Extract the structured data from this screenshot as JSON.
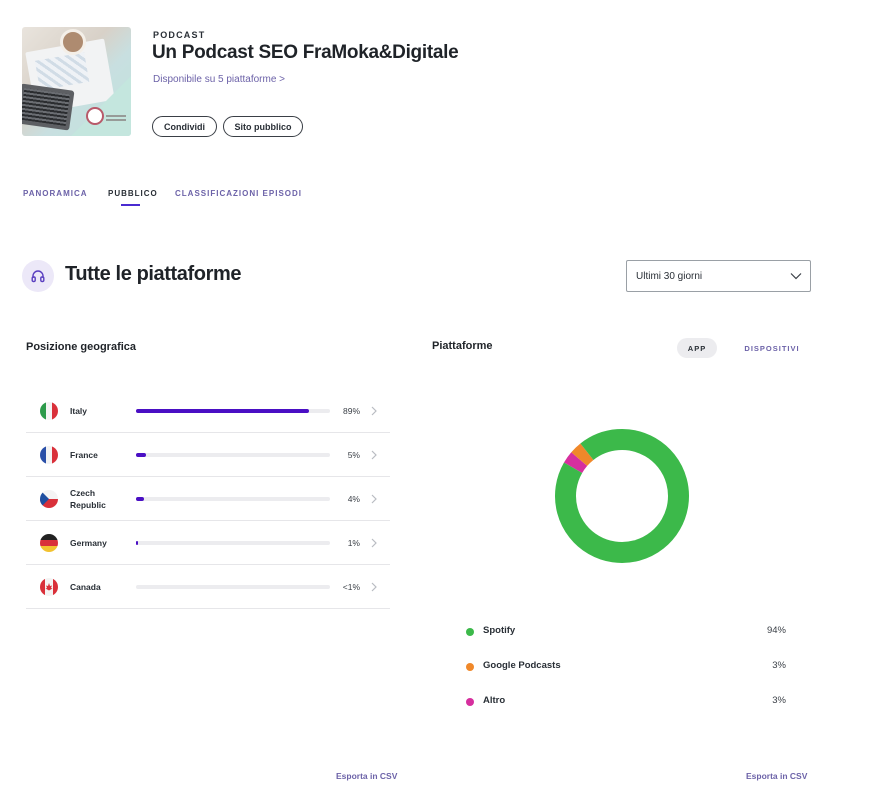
{
  "podcast": {
    "kicker": "PODCAST",
    "title": "Un Podcast SEO FraMoka&Digitale",
    "availability": "Disponibile su 5 piattaforme >",
    "share_label": "Condividi",
    "public_site_label": "Sito pubblico"
  },
  "tabs": [
    {
      "label": "PANORAMICA",
      "active": false
    },
    {
      "label": "PUBBLICO",
      "active": true
    },
    {
      "label": "CLASSIFICAZIONI EPISODI",
      "active": false
    }
  ],
  "section": {
    "title": "Tutte le piattaforme",
    "icon": "headphones-icon",
    "period": "Ultimi 30 giorni"
  },
  "geo": {
    "title": "Posizione geografica",
    "rows": [
      {
        "country": "Italy",
        "pct_label": "89%",
        "fraction": 0.89,
        "flag": "italy"
      },
      {
        "country": "France",
        "pct_label": "5%",
        "fraction": 0.05,
        "flag": "france"
      },
      {
        "country": "Czech Republic",
        "pct_label": "4%",
        "fraction": 0.04,
        "flag": "czech"
      },
      {
        "country": "Germany",
        "pct_label": "1%",
        "fraction": 0.01,
        "flag": "germany"
      },
      {
        "country": "Canada",
        "pct_label": "<1%",
        "fraction": 0.0,
        "flag": "canada"
      }
    ],
    "export_label": "Esporta in CSV"
  },
  "platforms": {
    "title": "Piattaforme",
    "toggle_app": "APP",
    "toggle_devices": "DISPOSITIVI",
    "items": [
      {
        "name": "Spotify",
        "pct_label": "94%",
        "value": 94,
        "color": "#3cb94a"
      },
      {
        "name": "Google Podcasts",
        "pct_label": "3%",
        "value": 3,
        "color": "#f0882a"
      },
      {
        "name": "Altro",
        "pct_label": "3%",
        "value": 3,
        "color": "#d62f9e"
      }
    ],
    "export_label": "Esporta in CSV"
  }
}
